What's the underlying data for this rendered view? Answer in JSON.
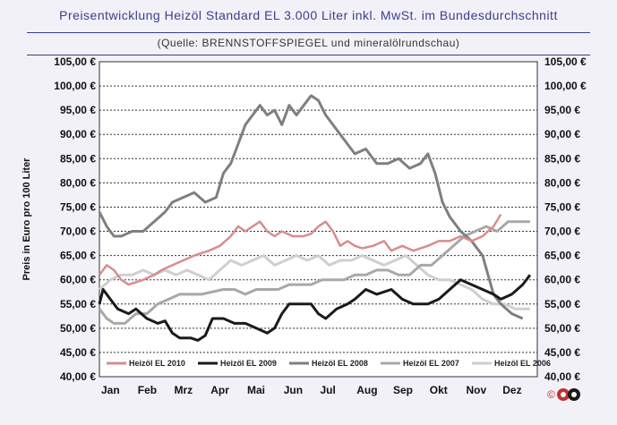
{
  "title": "Preisentwicklung Heizöl Standard EL 3.000 Liter inkl. MwSt. im Bundesdurchschnitt",
  "subtitle": "(Quelle: BRENNSTOFFSPIEGEL und mineralölrundschau)",
  "logo_text": "©",
  "colors": {
    "title": "#3a3d8f",
    "background": "#f2f1f8",
    "plot_background": "#ffffff"
  },
  "chart_data": {
    "type": "line",
    "title": "Preisentwicklung Heizöl Standard EL 3.000 Liter inkl. MwSt. im Bundesdurchschnitt",
    "ylabel": "Preis in Euro pro 100 Liter",
    "xlabel": "",
    "ylim": [
      40,
      105
    ],
    "yticks": [
      "40,00 €",
      "45,00 €",
      "50,00 €",
      "55,00 €",
      "60,00 €",
      "65,00 €",
      "70,00 €",
      "75,00 €",
      "80,00 €",
      "85,00 €",
      "90,00 €",
      "95,00 €",
      "100,00 €",
      "105,00 €"
    ],
    "months": [
      "Jan",
      "Feb",
      "Mrz",
      "Apr",
      "Mai",
      "Jun",
      "Jul",
      "Aug",
      "Sep",
      "Okt",
      "Nov",
      "Dez"
    ],
    "grid": true,
    "legend_position": "bottom",
    "series": [
      {
        "name": "Heizöl EL 2010",
        "color": "#d98c8c",
        "width": 2.5,
        "x": [
          0,
          0.2,
          0.4,
          0.6,
          0.8,
          1.0,
          1.2,
          1.5,
          1.7,
          2.0,
          2.3,
          2.6,
          3.0,
          3.3,
          3.6,
          3.8,
          4.0,
          4.2,
          4.4,
          4.6,
          4.8,
          5.0,
          5.3,
          5.6,
          5.8,
          6.0,
          6.2,
          6.4,
          6.6,
          6.8,
          7.0,
          7.2,
          7.5,
          7.8,
          8.0,
          8.3,
          8.6,
          9.0,
          9.3,
          9.6,
          9.9,
          10.2,
          10.5,
          10.8,
          11.0
        ],
        "y": [
          61,
          63,
          62,
          60,
          59,
          59.5,
          60,
          61,
          62,
          63,
          64,
          65,
          66,
          67,
          69,
          71,
          70,
          71,
          72,
          70,
          69,
          70,
          69,
          69,
          69.5,
          71,
          72,
          70,
          67,
          68,
          67,
          66.5,
          67,
          68,
          66,
          67,
          66,
          67,
          68,
          68,
          69,
          68,
          69,
          71,
          73.5
        ]
      },
      {
        "name": "Heizöl EL 2009",
        "color": "#1a1a1a",
        "width": 3,
        "x": [
          0,
          0.1,
          0.3,
          0.5,
          0.8,
          1.0,
          1.3,
          1.6,
          1.8,
          2.0,
          2.2,
          2.5,
          2.7,
          2.9,
          3.1,
          3.4,
          3.7,
          4.0,
          4.3,
          4.6,
          4.8,
          5.0,
          5.2,
          5.5,
          5.8,
          6.0,
          6.2,
          6.5,
          6.8,
          7.0,
          7.3,
          7.6,
          8.0,
          8.3,
          8.6,
          9.0,
          9.3,
          9.6,
          9.9,
          10.2,
          10.5,
          10.8,
          11.0,
          11.3,
          11.6,
          11.8
        ],
        "y": [
          55,
          58,
          56,
          54,
          53,
          54,
          52,
          51,
          51.5,
          49,
          48,
          48,
          47.5,
          48.5,
          52,
          52,
          51,
          51,
          50,
          49,
          50,
          53,
          55,
          55,
          55,
          53,
          52,
          54,
          55,
          56,
          58,
          57,
          58,
          56,
          55,
          55,
          56,
          58,
          60,
          59,
          58,
          57,
          56,
          57,
          59,
          61
        ]
      },
      {
        "name": "Heizöl EL 2008",
        "color": "#7f7f7f",
        "width": 3,
        "x": [
          0,
          0.2,
          0.4,
          0.6,
          0.9,
          1.2,
          1.5,
          1.8,
          2.0,
          2.3,
          2.6,
          2.9,
          3.2,
          3.4,
          3.6,
          3.8,
          4.0,
          4.2,
          4.4,
          4.6,
          4.8,
          5.0,
          5.2,
          5.4,
          5.6,
          5.8,
          6.0,
          6.2,
          6.4,
          6.6,
          6.8,
          7.0,
          7.3,
          7.6,
          7.9,
          8.2,
          8.5,
          8.8,
          9.0,
          9.2,
          9.4,
          9.6,
          9.9,
          10.2,
          10.5,
          10.8,
          11.0,
          11.3,
          11.6
        ],
        "y": [
          74,
          71,
          69,
          69,
          70,
          70,
          72,
          74,
          76,
          77,
          78,
          76,
          77,
          82,
          84,
          88,
          92,
          94,
          96,
          94,
          95,
          92,
          96,
          94,
          96,
          98,
          97,
          94,
          92,
          90,
          88,
          86,
          87,
          84,
          84,
          85,
          83,
          84,
          86,
          82,
          76,
          73,
          70,
          68,
          65,
          57,
          55,
          53,
          52
        ]
      },
      {
        "name": "Heizöl EL 2007",
        "color": "#a8a8a8",
        "width": 3,
        "x": [
          0,
          0.2,
          0.4,
          0.7,
          1.0,
          1.3,
          1.6,
          1.9,
          2.2,
          2.5,
          2.8,
          3.1,
          3.4,
          3.7,
          4.0,
          4.3,
          4.6,
          4.9,
          5.2,
          5.5,
          5.8,
          6.1,
          6.4,
          6.7,
          7.0,
          7.3,
          7.6,
          7.9,
          8.2,
          8.5,
          8.8,
          9.1,
          9.4,
          9.7,
          10.0,
          10.3,
          10.6,
          10.9,
          11.2,
          11.5,
          11.8
        ],
        "y": [
          54,
          52,
          51,
          51,
          53,
          53,
          55,
          56,
          57,
          57,
          57,
          57.5,
          58,
          58,
          57,
          58,
          58,
          58,
          59,
          59,
          59,
          60,
          60,
          60,
          61,
          61,
          62,
          62,
          61,
          61,
          63,
          63,
          65,
          67,
          69,
          70,
          71,
          70,
          72,
          72,
          72
        ]
      },
      {
        "name": "Heizöl EL 2006",
        "color": "#cfcfcf",
        "width": 3,
        "x": [
          0,
          0.3,
          0.6,
          0.9,
          1.2,
          1.5,
          1.8,
          2.1,
          2.4,
          2.7,
          3.0,
          3.3,
          3.6,
          3.9,
          4.2,
          4.5,
          4.8,
          5.1,
          5.4,
          5.7,
          6.0,
          6.3,
          6.6,
          6.9,
          7.2,
          7.5,
          7.8,
          8.1,
          8.4,
          8.7,
          9.0,
          9.3,
          9.6,
          9.9,
          10.2,
          10.5,
          10.8,
          11.1,
          11.4,
          11.8
        ],
        "y": [
          58,
          60,
          61,
          61,
          62,
          61,
          62,
          61,
          62,
          61,
          60,
          62,
          64,
          63,
          64,
          65,
          63,
          64,
          65,
          64,
          65,
          63,
          64,
          64,
          65,
          64,
          63,
          64,
          65,
          63,
          61,
          60,
          60,
          59,
          58,
          56,
          55,
          55,
          54,
          54
        ]
      }
    ]
  }
}
